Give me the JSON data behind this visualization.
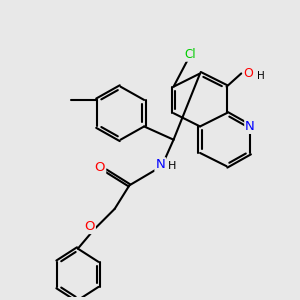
{
  "background_color": "#e8e8e8",
  "bond_color": "#000000",
  "bond_width": 1.5,
  "atom_colors": {
    "N": "#0000ff",
    "O": "#ff0000",
    "Cl": "#00cc00",
    "H": "#000000",
    "C": "#000000"
  },
  "font_size": 8.5,
  "figsize": [
    3.0,
    3.0
  ],
  "dpi": 100
}
